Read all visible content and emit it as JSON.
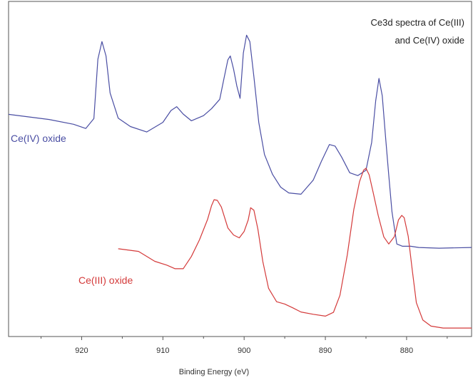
{
  "chart_data": {
    "type": "line",
    "title_lines": [
      "Ce3d spectra of Ce(III)",
      "and Ce(IV) oxide"
    ],
    "xlabel": "Binding Energy (eV)",
    "ylabel": "",
    "x_reversed": true,
    "xlim": [
      929,
      872
    ],
    "x_ticks": [
      920,
      910,
      900,
      890,
      880
    ],
    "x_tick_labels": [
      "920",
      "910",
      "900",
      "890",
      "880"
    ],
    "y_scale": "arbitrary",
    "ylim": [
      0,
      1
    ],
    "grid": false,
    "colors": {
      "ce4": "#4a4ea3",
      "ce3": "#d43a3a",
      "axis": "#555555"
    },
    "series": [
      {
        "name": "Ce(IV) oxide",
        "key": "ce4",
        "x": [
          929,
          924,
          921,
          919.5,
          918.5,
          918,
          917.5,
          917,
          916.5,
          915.5,
          914,
          912,
          910,
          909,
          908.3,
          907.5,
          906.5,
          905,
          904,
          903,
          902.5,
          902,
          901.7,
          901.3,
          900.9,
          900.5,
          900.1,
          899.7,
          899.3,
          898.8,
          898.2,
          897.5,
          896.5,
          895.5,
          894.5,
          893,
          891.5,
          890.5,
          889.5,
          888.8,
          888,
          887,
          886,
          885,
          884.3,
          883.8,
          883.4,
          883,
          882.6,
          882.2,
          881.8,
          881.2,
          880.5,
          879.5,
          878.5,
          876,
          872
        ],
        "y": [
          0.688,
          0.672,
          0.657,
          0.644,
          0.675,
          0.86,
          0.915,
          0.87,
          0.755,
          0.676,
          0.65,
          0.633,
          0.663,
          0.7,
          0.712,
          0.689,
          0.668,
          0.684,
          0.706,
          0.735,
          0.797,
          0.858,
          0.87,
          0.829,
          0.777,
          0.738,
          0.879,
          0.935,
          0.915,
          0.805,
          0.663,
          0.563,
          0.501,
          0.461,
          0.443,
          0.439,
          0.483,
          0.541,
          0.594,
          0.589,
          0.555,
          0.506,
          0.497,
          0.514,
          0.601,
          0.73,
          0.8,
          0.746,
          0.621,
          0.499,
          0.385,
          0.284,
          0.277,
          0.277,
          0.273,
          0.271,
          0.273
        ]
      },
      {
        "name": "Ce(III) oxide",
        "key": "ce3",
        "x": [
          915.5,
          913,
          911,
          909.5,
          908.5,
          907.5,
          906.5,
          905.5,
          904.5,
          904,
          903.7,
          903.3,
          902.8,
          902,
          901.3,
          900.6,
          900,
          899.5,
          899.2,
          898.8,
          898.3,
          897.7,
          897,
          896,
          895,
          894,
          893,
          891.5,
          890,
          889,
          888.2,
          887.3,
          886.5,
          885.8,
          885.3,
          885,
          884.6,
          884.1,
          883.5,
          882.8,
          882.2,
          881.5,
          881,
          880.6,
          880.3,
          879.8,
          879.3,
          878.8,
          878,
          877,
          875.5,
          872
        ],
        "y": [
          0.269,
          0.261,
          0.23,
          0.218,
          0.207,
          0.207,
          0.245,
          0.297,
          0.361,
          0.404,
          0.422,
          0.42,
          0.399,
          0.334,
          0.312,
          0.303,
          0.323,
          0.359,
          0.397,
          0.389,
          0.33,
          0.229,
          0.146,
          0.104,
          0.097,
          0.085,
          0.072,
          0.065,
          0.059,
          0.071,
          0.124,
          0.25,
          0.391,
          0.478,
          0.514,
          0.52,
          0.499,
          0.443,
          0.373,
          0.306,
          0.284,
          0.307,
          0.359,
          0.373,
          0.366,
          0.308,
          0.202,
          0.101,
          0.047,
          0.028,
          0.022,
          0.022
        ]
      }
    ],
    "annotations": [
      {
        "text": "Ce(IV) oxide",
        "series": "ce4"
      },
      {
        "text": "Ce(III) oxide",
        "series": "ce3"
      }
    ]
  }
}
